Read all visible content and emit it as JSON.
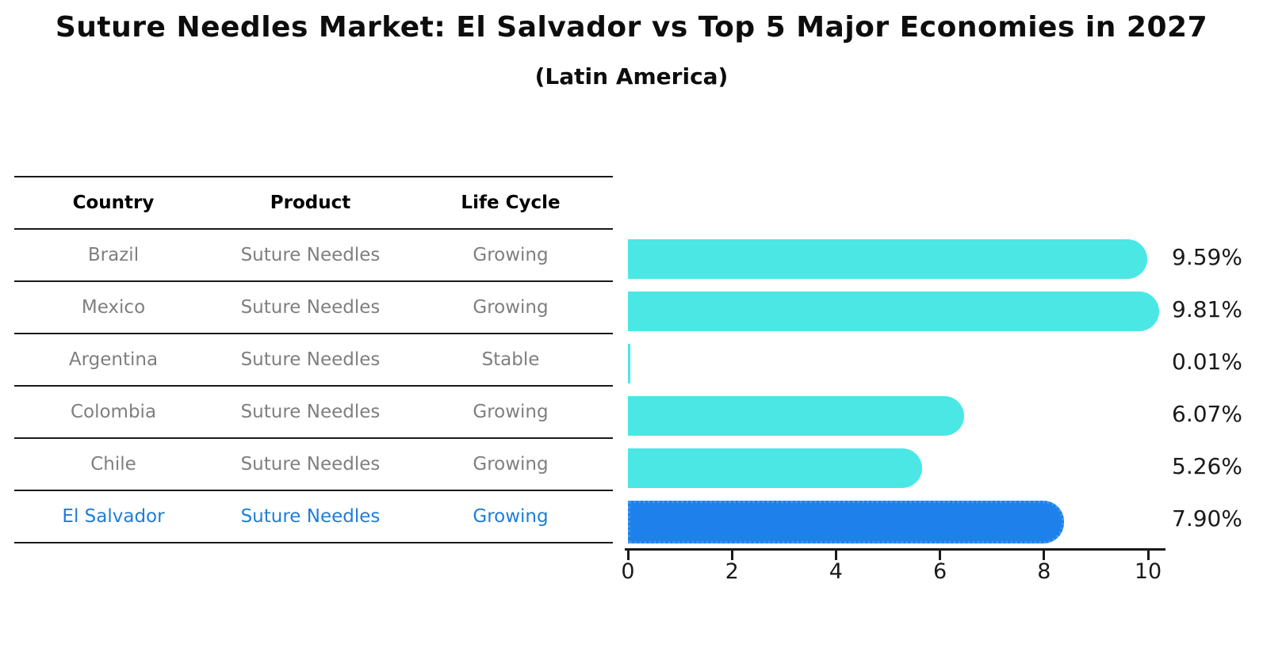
{
  "title": "Suture Needles Market: El Salvador vs Top 5 Major Economies in 2027",
  "subtitle": "(Latin America)",
  "table": {
    "headers": [
      "Country",
      "Product",
      "Life Cycle"
    ],
    "rows": [
      {
        "country": "Brazil",
        "product": "Suture Needles",
        "life_cycle": "Growing",
        "highlight": false
      },
      {
        "country": "Mexico",
        "product": "Suture Needles",
        "life_cycle": "Growing",
        "highlight": false
      },
      {
        "country": "Argentina",
        "product": "Suture Needles",
        "life_cycle": "Stable",
        "highlight": false
      },
      {
        "country": "Colombia",
        "product": "Suture Needles",
        "life_cycle": "Growing",
        "highlight": false
      },
      {
        "country": "Chile",
        "product": "Suture Needles",
        "life_cycle": "Growing",
        "highlight": false
      },
      {
        "country": "El Salvador",
        "product": "Suture Needles",
        "life_cycle": "Growing",
        "highlight": true
      }
    ]
  },
  "chart_data": {
    "type": "bar",
    "orientation": "horizontal",
    "categories": [
      "Brazil",
      "Mexico",
      "Argentina",
      "Colombia",
      "Chile",
      "El Salvador"
    ],
    "values": [
      9.59,
      9.81,
      0.01,
      6.07,
      5.26,
      7.9
    ],
    "value_labels": [
      "9.59%",
      "9.81%",
      "0.01%",
      "6.07%",
      "5.26%",
      "7.90%"
    ],
    "x_ticks": [
      0,
      2,
      4,
      6,
      8,
      10
    ],
    "xlim": [
      0,
      10
    ],
    "highlight_index": 5,
    "grid": false,
    "legend": false,
    "colors": {
      "bar": "#4AE7E5",
      "highlight_bar": "#1E80EA",
      "highlight_bar_border": "#3E97EE",
      "highlight_text": "#1E7ED6",
      "row_text": "#7f7f7f",
      "axis": "#1a1a1a"
    }
  }
}
